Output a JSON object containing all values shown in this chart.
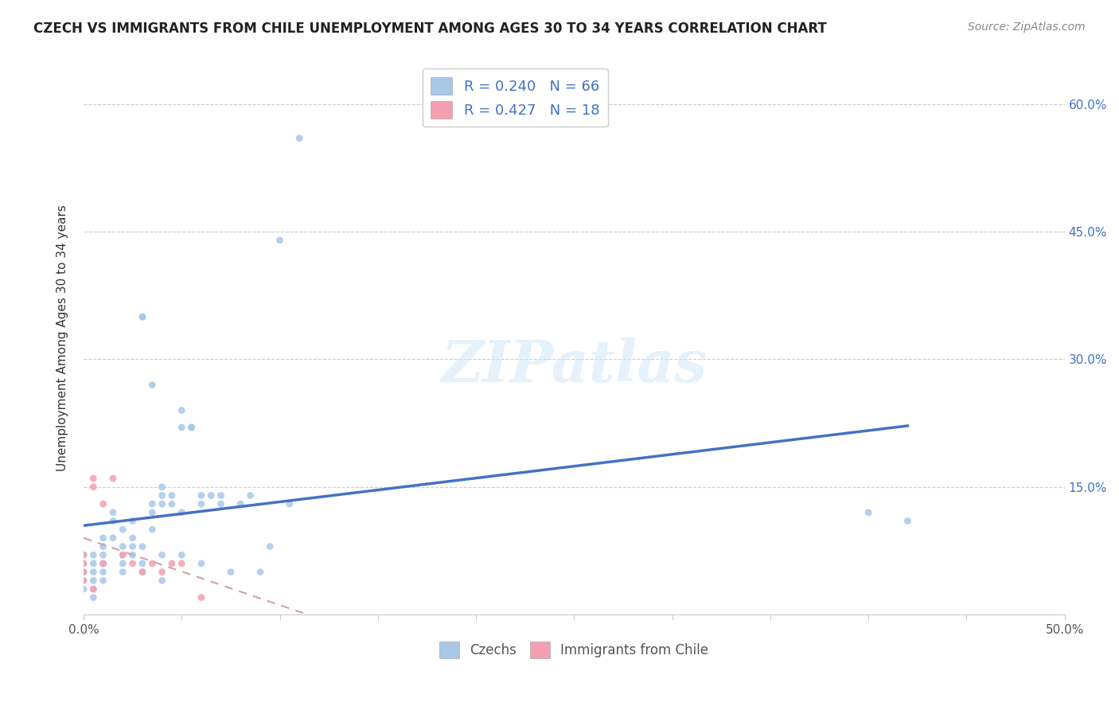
{
  "title": "CZECH VS IMMIGRANTS FROM CHILE UNEMPLOYMENT AMONG AGES 30 TO 34 YEARS CORRELATION CHART",
  "source": "Source: ZipAtlas.com",
  "ylabel": "Unemployment Among Ages 30 to 34 years",
  "xlim": [
    0.0,
    0.5
  ],
  "ylim": [
    0.0,
    0.65
  ],
  "xticks": [
    0.0,
    0.05,
    0.1,
    0.15,
    0.2,
    0.25,
    0.3,
    0.35,
    0.4,
    0.45,
    0.5
  ],
  "yticks": [
    0.0,
    0.15,
    0.3,
    0.45,
    0.6
  ],
  "czech_color": "#a8c8e8",
  "chile_color": "#f4a0b0",
  "czech_line_color": "#4472c4",
  "chile_line_color": "#d0a0b0",
  "czech_scatter": [
    [
      0.0,
      0.04
    ],
    [
      0.0,
      0.06
    ],
    [
      0.0,
      0.05
    ],
    [
      0.0,
      0.07
    ],
    [
      0.0,
      0.03
    ],
    [
      0.005,
      0.04
    ],
    [
      0.005,
      0.05
    ],
    [
      0.005,
      0.06
    ],
    [
      0.005,
      0.07
    ],
    [
      0.005,
      0.03
    ],
    [
      0.005,
      0.02
    ],
    [
      0.01,
      0.08
    ],
    [
      0.01,
      0.06
    ],
    [
      0.01,
      0.05
    ],
    [
      0.01,
      0.04
    ],
    [
      0.01,
      0.07
    ],
    [
      0.01,
      0.09
    ],
    [
      0.015,
      0.11
    ],
    [
      0.015,
      0.09
    ],
    [
      0.015,
      0.12
    ],
    [
      0.02,
      0.1
    ],
    [
      0.02,
      0.08
    ],
    [
      0.02,
      0.07
    ],
    [
      0.02,
      0.06
    ],
    [
      0.02,
      0.05
    ],
    [
      0.025,
      0.09
    ],
    [
      0.025,
      0.07
    ],
    [
      0.025,
      0.08
    ],
    [
      0.025,
      0.11
    ],
    [
      0.03,
      0.35
    ],
    [
      0.03,
      0.35
    ],
    [
      0.03,
      0.08
    ],
    [
      0.03,
      0.06
    ],
    [
      0.03,
      0.05
    ],
    [
      0.035,
      0.27
    ],
    [
      0.035,
      0.13
    ],
    [
      0.035,
      0.12
    ],
    [
      0.035,
      0.1
    ],
    [
      0.04,
      0.13
    ],
    [
      0.04,
      0.14
    ],
    [
      0.04,
      0.15
    ],
    [
      0.04,
      0.07
    ],
    [
      0.04,
      0.04
    ],
    [
      0.045,
      0.13
    ],
    [
      0.045,
      0.14
    ],
    [
      0.05,
      0.24
    ],
    [
      0.05,
      0.22
    ],
    [
      0.05,
      0.12
    ],
    [
      0.05,
      0.07
    ],
    [
      0.055,
      0.22
    ],
    [
      0.055,
      0.22
    ],
    [
      0.06,
      0.13
    ],
    [
      0.06,
      0.14
    ],
    [
      0.06,
      0.06
    ],
    [
      0.065,
      0.14
    ],
    [
      0.07,
      0.14
    ],
    [
      0.07,
      0.13
    ],
    [
      0.075,
      0.05
    ],
    [
      0.08,
      0.13
    ],
    [
      0.085,
      0.14
    ],
    [
      0.09,
      0.05
    ],
    [
      0.095,
      0.08
    ],
    [
      0.1,
      0.44
    ],
    [
      0.105,
      0.13
    ],
    [
      0.11,
      0.56
    ],
    [
      0.4,
      0.12
    ],
    [
      0.42,
      0.11
    ]
  ],
  "chile_scatter": [
    [
      0.0,
      0.04
    ],
    [
      0.0,
      0.05
    ],
    [
      0.0,
      0.06
    ],
    [
      0.0,
      0.07
    ],
    [
      0.005,
      0.03
    ],
    [
      0.005,
      0.16
    ],
    [
      0.005,
      0.15
    ],
    [
      0.01,
      0.13
    ],
    [
      0.01,
      0.06
    ],
    [
      0.015,
      0.16
    ],
    [
      0.02,
      0.07
    ],
    [
      0.025,
      0.06
    ],
    [
      0.03,
      0.05
    ],
    [
      0.035,
      0.06
    ],
    [
      0.04,
      0.05
    ],
    [
      0.045,
      0.06
    ],
    [
      0.05,
      0.06
    ],
    [
      0.06,
      0.02
    ]
  ],
  "watermark": "ZIPatlas",
  "background_color": "#ffffff",
  "grid_color": "#cccccc"
}
